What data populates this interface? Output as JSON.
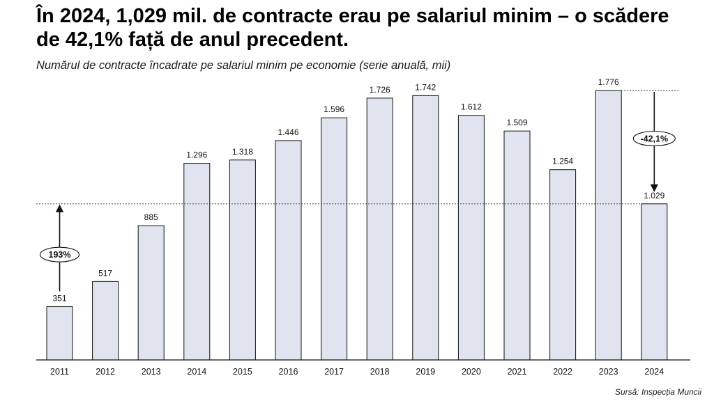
{
  "title": "În 2024, 1,029 mil. de contracte erau pe salariul minim – o scădere de 42,1% față de anul precedent.",
  "subtitle": "Numărul de contracte încadrate pe salariul minim pe economie (serie anuală, mii)",
  "source": "Sursă: Inspecția Muncii",
  "chart_data": {
    "type": "bar",
    "categories": [
      "2011",
      "2012",
      "2013",
      "2014",
      "2015",
      "2016",
      "2017",
      "2018",
      "2019",
      "2020",
      "2021",
      "2022",
      "2023",
      "2024"
    ],
    "values": [
      351,
      517,
      885,
      1296,
      1318,
      1446,
      1596,
      1726,
      1742,
      1612,
      1509,
      1254,
      1776,
      1029
    ],
    "value_labels": [
      "351",
      "517",
      "885",
      "1.296",
      "1.318",
      "1.446",
      "1.596",
      "1.726",
      "1.742",
      "1.612",
      "1.509",
      "1.254",
      "1.776",
      "1.029"
    ],
    "title": "Numărul de contracte încadrate pe salariul minim pe economie (serie anuală, mii)",
    "xlabel": "",
    "ylabel": "",
    "ylim": [
      0,
      1776
    ],
    "grid": false,
    "colors": {
      "bar_fill": "#dfe4ef",
      "bar_stroke": "#111111",
      "text": "#111111"
    },
    "annotations": [
      {
        "label": "193%",
        "from_category": "2011",
        "to_value": 1029,
        "direction": "up"
      },
      {
        "label": "-42,1%",
        "from_value": 1776,
        "to_value": 1029,
        "at_category": "2024",
        "direction": "down"
      }
    ]
  }
}
